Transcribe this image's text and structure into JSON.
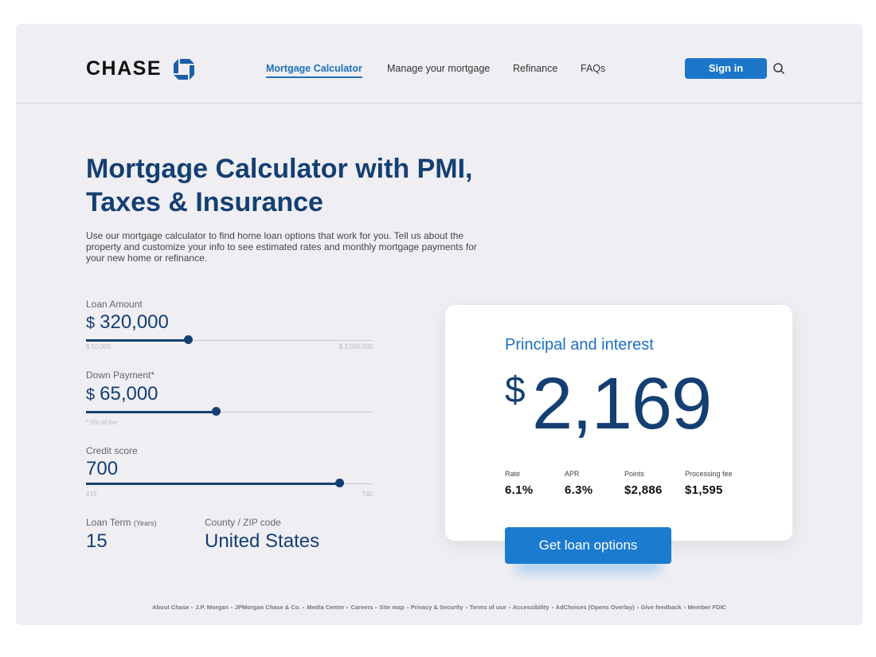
{
  "header": {
    "logo": "CHASE",
    "nav": [
      "Mortgage Calculator",
      "Manage your mortgage",
      "Refinance",
      "FAQs"
    ],
    "sign_in": "Sign in"
  },
  "hero": {
    "title_lines": [
      "Mortgage Calculator with PMI,",
      "Taxes & Insurance"
    ],
    "description": "Use our mortgage calculator to find home loan options that work for you. Tell us about the property and customize your info to see estimated rates and monthly mortgage payments for your new home or refinance."
  },
  "form": {
    "loan_amount": {
      "label": "Loan Amount",
      "currency": "$",
      "value": "320,000",
      "min": "$ 50,000",
      "max": "$ 3,000,000"
    },
    "down_payment": {
      "label": "Down Payment*",
      "currency": "$",
      "value": "65,000",
      "note": "*  5% of the"
    },
    "credit_score": {
      "label": "Credit score",
      "value": "700",
      "min": "619",
      "max": "740"
    },
    "loan_term": {
      "label": "Loan Term",
      "unit": "(Years)",
      "value": "15"
    },
    "location": {
      "label": "County / ZIP code",
      "value": "United States"
    }
  },
  "result": {
    "title": "Principal and interest",
    "currency": "$",
    "amount": "2,169",
    "stats": [
      {
        "label": "Rate",
        "value": "6.1%"
      },
      {
        "label": "APR",
        "value": "6.3%"
      },
      {
        "label": "Points",
        "value": "$2,886"
      },
      {
        "label": "Processing fee",
        "value": "$1,595"
      }
    ],
    "button": "Get loan options"
  },
  "footer": {
    "links": [
      "About Chase",
      "J.P. Morgan",
      "JPMorgan Chase & Co.",
      "Media Center",
      "Careers",
      "Site map",
      "Privacy & Security",
      "Terms of use",
      "Accessibility",
      "AdChoices (Opens Overlay)",
      "Give feedback",
      "Member FDIC"
    ]
  }
}
